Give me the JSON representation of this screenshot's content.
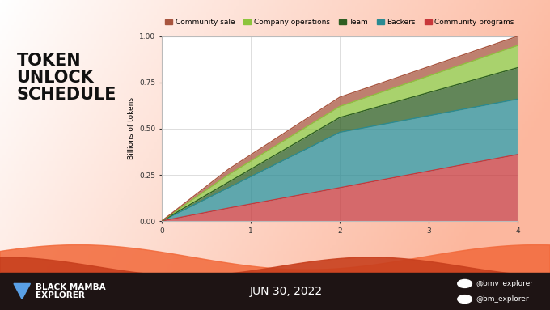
{
  "chart_data": {
    "type": "area",
    "stacked": true,
    "title": "TOKEN\nUNLOCK\nSCHEDULE",
    "y_label": "Billions of tokens",
    "x": [
      0,
      0.75,
      2,
      4
    ],
    "series": [
      {
        "name": "Community programs",
        "color": "#c8373a",
        "values": [
          0,
          0.07,
          0.18,
          0.36
        ]
      },
      {
        "name": "Backers",
        "color": "#2a8a92",
        "values": [
          0,
          0.11,
          0.3,
          0.3
        ]
      },
      {
        "name": "Team",
        "color": "#2e5e22",
        "values": [
          0,
          0.03,
          0.08,
          0.17
        ]
      },
      {
        "name": "Company operations",
        "color": "#8cc43c",
        "values": [
          0,
          0.04,
          0.06,
          0.12
        ]
      },
      {
        "name": "Community sale",
        "color": "#a8553f",
        "values": [
          0,
          0.03,
          0.05,
          0.05
        ]
      }
    ],
    "legend_order": [
      "Community sale",
      "Company operations",
      "Team",
      "Backers",
      "Community programs"
    ],
    "legend": "top",
    "xlim": [
      0,
      4
    ],
    "xticks": [
      0,
      1,
      2,
      3,
      4
    ],
    "ylim": [
      0,
      1
    ],
    "yticks": [
      {
        "value": 0,
        "label": "0.00"
      },
      0.25,
      {
        "value": 0.5,
        "label": "0.50"
      },
      0.75,
      {
        "value": 1,
        "label": "1.00"
      }
    ],
    "grid": true
  },
  "footer": {
    "brand": "BLACK MAMBA\nEXPLORER",
    "date": "JUN 30, 2022",
    "twitter": "@bmv_explorer",
    "telegram": "@bm_explorer"
  }
}
